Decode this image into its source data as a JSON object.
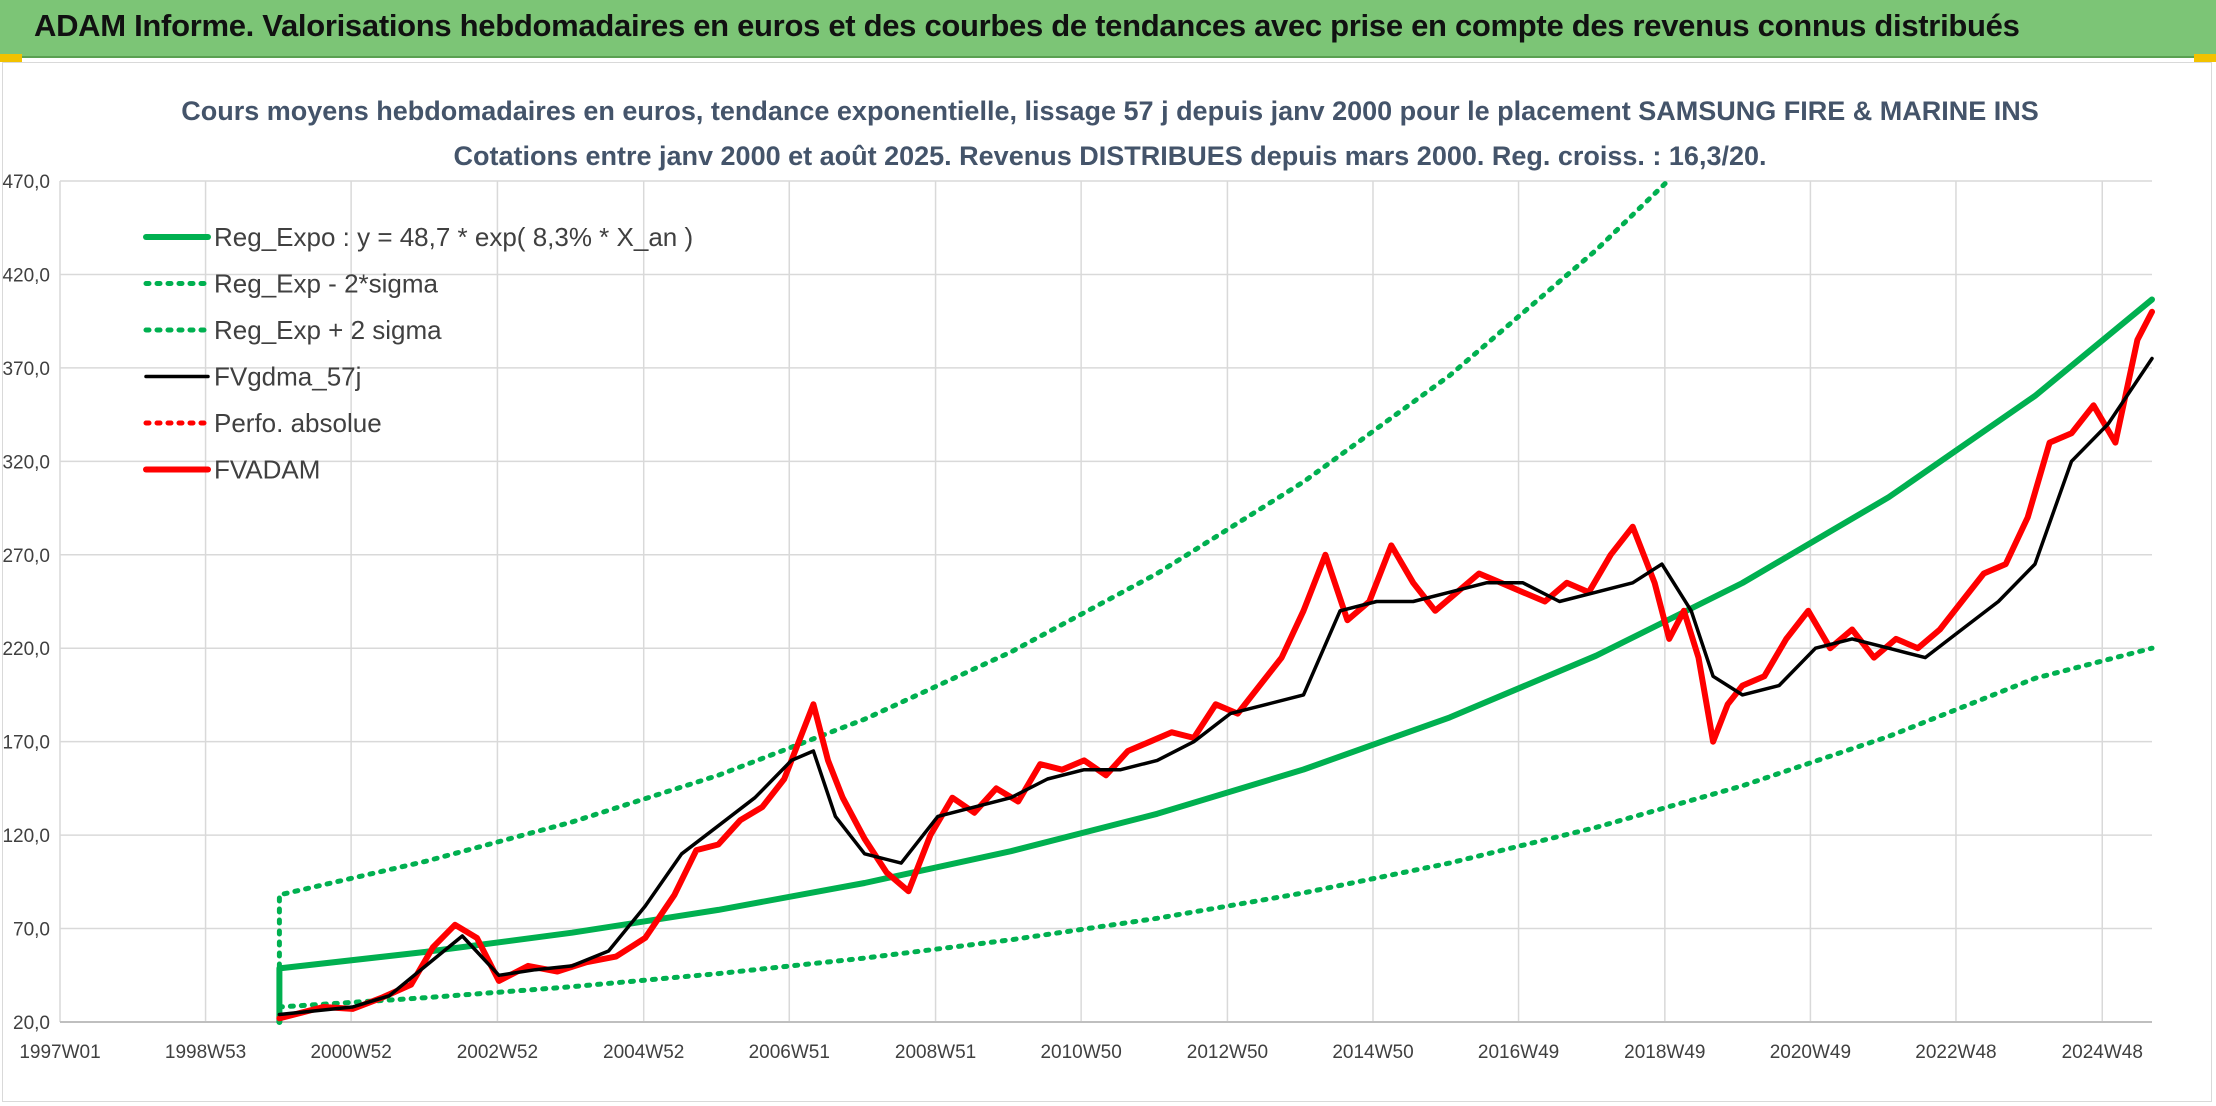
{
  "banner": {
    "title": "ADAM Informe. Valorisations hebdomadaires en euros et des courbes de tendances avec prise en compte des revenus connus distribués"
  },
  "chart_data": {
    "type": "line",
    "title_line1": "Cours moyens hebdomadaires en euros, tendance exponentielle, lissage 57 j depuis janv 2000 pour le placement SAMSUNG FIRE & MARINE INS",
    "title_line2": "Cotations entre janv 2000 et août 2025. Revenus DISTRIBUES depuis mars 2000. Reg. croiss. : 16,3/20.",
    "xlabel": "",
    "ylabel": "",
    "ylim": [
      20,
      470
    ],
    "xlim": [
      1997.0,
      2025.6
    ],
    "y_ticks": [
      "20,0",
      "70,0",
      "120,0",
      "170,0",
      "220,0",
      "270,0",
      "320,0",
      "370,0",
      "420,0",
      "470,0"
    ],
    "x_ticks": [
      {
        "label": "1997W01",
        "year": 1997.0
      },
      {
        "label": "1998W53",
        "year": 1998.99
      },
      {
        "label": "2000W52",
        "year": 2000.98
      },
      {
        "label": "2002W52",
        "year": 2002.98
      },
      {
        "label": "2004W52",
        "year": 2004.98
      },
      {
        "label": "2006W51",
        "year": 2006.97
      },
      {
        "label": "2008W51",
        "year": 2008.97
      },
      {
        "label": "2010W50",
        "year": 2010.96
      },
      {
        "label": "2012W50",
        "year": 2012.96
      },
      {
        "label": "2014W50",
        "year": 2014.95
      },
      {
        "label": "2016W49",
        "year": 2016.94
      },
      {
        "label": "2018W49",
        "year": 2018.94
      },
      {
        "label": "2020W49",
        "year": 2020.93
      },
      {
        "label": "2022W48",
        "year": 2022.92
      },
      {
        "label": "2024W48",
        "year": 2024.92
      }
    ],
    "grid": true,
    "legend_position": "top-left",
    "series": [
      {
        "name": "Reg_Expo : y = 48,7 * exp( 8,3% *  X_an )",
        "color": "#00b050",
        "style": "solid-thick",
        "x": [
          2000.0,
          2002.0,
          2004.0,
          2006.0,
          2008.0,
          2010.0,
          2012.0,
          2014.0,
          2016.0,
          2018.0,
          2020.0,
          2022.0,
          2024.0,
          2025.6
        ],
        "y": [
          48.7,
          57.5,
          67.8,
          80.0,
          94.4,
          111.4,
          131.4,
          155.1,
          183.0,
          216.0,
          254.9,
          300.8,
          355.0,
          406.6
        ]
      },
      {
        "name": "Reg_Exp - 2*sigma",
        "color": "#00b050",
        "style": "dotted",
        "x": [
          2000.0,
          2002.0,
          2004.0,
          2006.0,
          2008.0,
          2010.0,
          2012.0,
          2014.0,
          2016.0,
          2018.0,
          2020.0,
          2022.0,
          2024.0,
          2025.6
        ],
        "y": [
          28.0,
          33.0,
          38.9,
          45.9,
          54.2,
          64.0,
          75.5,
          89.1,
          105.1,
          124.1,
          146.4,
          172.8,
          203.9,
          220.0
        ]
      },
      {
        "name": "Reg_Exp + 2 sigma",
        "color": "#00b050",
        "style": "dotted",
        "x": [
          2000.0,
          2002.0,
          2004.0,
          2006.0,
          2008.0,
          2010.0,
          2012.0,
          2014.0,
          2016.0,
          2018.0,
          2018.98
        ],
        "y": [
          88.0,
          106.0,
          127.0,
          152.0,
          182.0,
          218.0,
          260.0,
          309.0,
          366.0,
          433.0,
          470.0
        ]
      },
      {
        "name": "FVgdma_57j",
        "color": "#000000",
        "style": "solid",
        "x": [
          2000.0,
          2000.5,
          2001.0,
          2001.5,
          2002.0,
          2002.5,
          2003.0,
          2003.5,
          2004.0,
          2004.5,
          2005.0,
          2005.5,
          2006.0,
          2006.5,
          2007.0,
          2007.3,
          2007.6,
          2008.0,
          2008.5,
          2009.0,
          2009.5,
          2010.0,
          2010.5,
          2011.0,
          2011.5,
          2012.0,
          2012.5,
          2013.0,
          2013.5,
          2014.0,
          2014.5,
          2015.0,
          2015.5,
          2016.0,
          2016.5,
          2017.0,
          2017.5,
          2018.0,
          2018.5,
          2018.9,
          2019.3,
          2019.6,
          2020.0,
          2020.5,
          2021.0,
          2021.5,
          2022.0,
          2022.5,
          2023.0,
          2023.5,
          2024.0,
          2024.5,
          2025.0,
          2025.6
        ],
        "y": [
          24,
          26,
          28,
          34,
          50,
          66,
          45,
          48,
          50,
          58,
          82,
          110,
          125,
          140,
          160,
          165,
          130,
          110,
          105,
          130,
          135,
          140,
          150,
          155,
          155,
          160,
          170,
          185,
          190,
          195,
          240,
          245,
          245,
          250,
          255,
          255,
          245,
          250,
          255,
          265,
          240,
          205,
          195,
          200,
          220,
          225,
          220,
          215,
          230,
          245,
          265,
          320,
          340,
          375
        ]
      },
      {
        "name": "Perfo. absolue",
        "color": "#ff0000",
        "style": "dotted",
        "x": [],
        "y": []
      },
      {
        "name": "FVADAM",
        "color": "#ff0000",
        "style": "solid-thick",
        "x": [
          2000.0,
          2000.3,
          2000.6,
          2001.0,
          2001.4,
          2001.8,
          2002.1,
          2002.4,
          2002.7,
          2003.0,
          2003.4,
          2003.8,
          2004.2,
          2004.6,
          2005.0,
          2005.4,
          2005.7,
          2006.0,
          2006.3,
          2006.6,
          2006.9,
          2007.1,
          2007.3,
          2007.5,
          2007.7,
          2008.0,
          2008.3,
          2008.6,
          2008.9,
          2009.2,
          2009.5,
          2009.8,
          2010.1,
          2010.4,
          2010.7,
          2011.0,
          2011.3,
          2011.6,
          2011.9,
          2012.2,
          2012.5,
          2012.8,
          2013.1,
          2013.4,
          2013.7,
          2014.0,
          2014.3,
          2014.6,
          2014.9,
          2015.2,
          2015.5,
          2015.8,
          2016.1,
          2016.4,
          2016.7,
          2017.0,
          2017.3,
          2017.6,
          2017.9,
          2018.2,
          2018.5,
          2018.8,
          2019.0,
          2019.2,
          2019.4,
          2019.6,
          2019.8,
          2020.0,
          2020.3,
          2020.6,
          2020.9,
          2021.2,
          2021.5,
          2021.8,
          2022.1,
          2022.4,
          2022.7,
          2023.0,
          2023.3,
          2023.6,
          2023.9,
          2024.2,
          2024.5,
          2024.8,
          2025.1,
          2025.4,
          2025.6
        ],
        "y": [
          22,
          25,
          28,
          27,
          33,
          40,
          60,
          72,
          65,
          42,
          50,
          47,
          52,
          55,
          65,
          88,
          112,
          115,
          128,
          135,
          150,
          170,
          190,
          160,
          140,
          118,
          100,
          90,
          120,
          140,
          132,
          145,
          138,
          158,
          155,
          160,
          152,
          165,
          170,
          175,
          172,
          190,
          185,
          200,
          215,
          240,
          270,
          235,
          245,
          275,
          255,
          240,
          250,
          260,
          255,
          250,
          245,
          255,
          250,
          270,
          285,
          255,
          225,
          240,
          215,
          170,
          190,
          200,
          205,
          225,
          240,
          220,
          230,
          215,
          225,
          220,
          230,
          245,
          260,
          265,
          290,
          330,
          335,
          350,
          330,
          385,
          400
        ]
      }
    ]
  }
}
